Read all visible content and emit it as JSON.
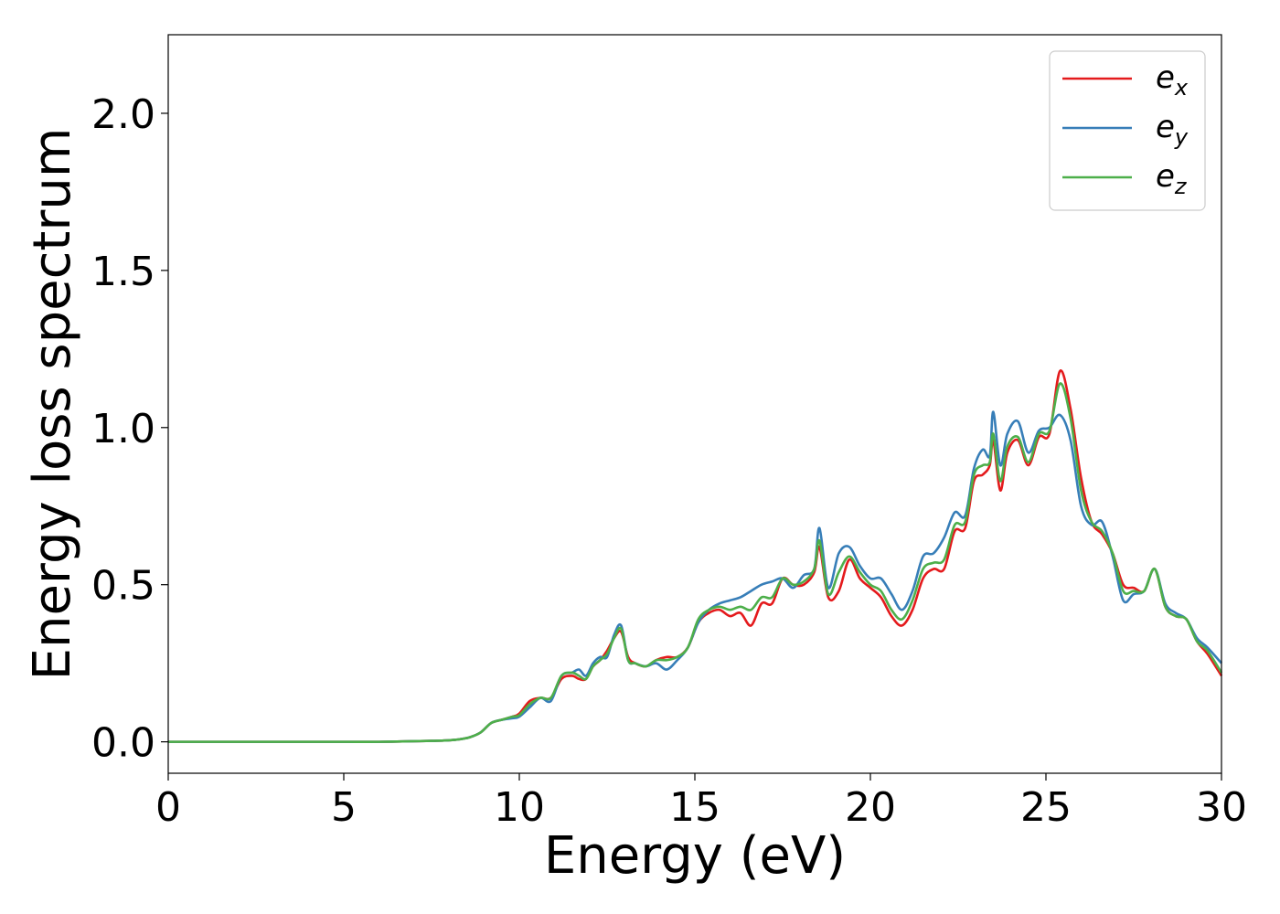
{
  "chart_data": {
    "type": "line",
    "xlabel": "Energy (eV)",
    "ylabel": "Energy loss spectrum",
    "xlim": [
      0,
      30
    ],
    "ylim": [
      -0.1,
      2.25
    ],
    "xticks": [
      0,
      5,
      10,
      15,
      20,
      25,
      30
    ],
    "yticks": [
      0.0,
      0.5,
      1.0,
      1.5,
      2.0
    ],
    "xtick_labels": [
      "0",
      "5",
      "10",
      "15",
      "20",
      "25",
      "30"
    ],
    "ytick_labels": [
      "0.0",
      "0.5",
      "1.0",
      "1.5",
      "2.0"
    ],
    "grid": false,
    "legend_position": "top-right",
    "x": [
      0,
      1,
      2,
      3,
      4,
      5,
      6,
      7,
      7.5,
      8,
      8.3,
      8.6,
      8.9,
      9.2,
      9.5,
      9.8,
      10,
      10.3,
      10.6,
      10.9,
      11.2,
      11.5,
      11.7,
      11.9,
      12.1,
      12.3,
      12.5,
      12.7,
      12.9,
      13.1,
      13.3,
      13.6,
      13.9,
      14.2,
      14.5,
      14.8,
      15.1,
      15.4,
      15.7,
      16,
      16.3,
      16.6,
      16.9,
      17.2,
      17.5,
      17.8,
      18.1,
      18.4,
      18.55,
      18.8,
      19.1,
      19.4,
      19.7,
      20,
      20.3,
      20.6,
      20.9,
      21.2,
      21.5,
      21.8,
      22.1,
      22.4,
      22.7,
      22.95,
      23.2,
      23.4,
      23.5,
      23.7,
      23.9,
      24.2,
      24.5,
      24.8,
      25.1,
      25.4,
      25.7,
      26.0,
      26.3,
      26.6,
      26.9,
      27.2,
      27.5,
      27.8,
      28.1,
      28.4,
      28.7,
      29.0,
      29.3,
      29.6,
      30
    ],
    "series": [
      {
        "name": "x",
        "color": "#e41a1c",
        "values": [
          0,
          0,
          0,
          0,
          0,
          0,
          0,
          0.002,
          0.003,
          0.005,
          0.008,
          0.015,
          0.03,
          0.06,
          0.07,
          0.08,
          0.09,
          0.13,
          0.14,
          0.14,
          0.2,
          0.21,
          0.2,
          0.2,
          0.24,
          0.26,
          0.29,
          0.33,
          0.35,
          0.27,
          0.25,
          0.24,
          0.26,
          0.27,
          0.27,
          0.3,
          0.38,
          0.41,
          0.42,
          0.4,
          0.41,
          0.37,
          0.44,
          0.44,
          0.52,
          0.5,
          0.5,
          0.54,
          0.62,
          0.46,
          0.48,
          0.58,
          0.52,
          0.49,
          0.46,
          0.4,
          0.37,
          0.42,
          0.52,
          0.55,
          0.55,
          0.67,
          0.68,
          0.83,
          0.85,
          0.88,
          0.96,
          0.8,
          0.92,
          0.96,
          0.88,
          0.97,
          0.98,
          1.18,
          1.06,
          0.84,
          0.7,
          0.66,
          0.6,
          0.5,
          0.49,
          0.48,
          0.55,
          0.43,
          0.4,
          0.39,
          0.32,
          0.28,
          0.21
        ]
      },
      {
        "name": "y",
        "color": "#377eb8",
        "values": [
          0,
          0,
          0,
          0,
          0,
          0,
          0,
          0.002,
          0.003,
          0.005,
          0.008,
          0.015,
          0.03,
          0.06,
          0.07,
          0.075,
          0.08,
          0.11,
          0.14,
          0.13,
          0.21,
          0.22,
          0.23,
          0.21,
          0.25,
          0.27,
          0.27,
          0.34,
          0.37,
          0.26,
          0.25,
          0.24,
          0.25,
          0.23,
          0.26,
          0.3,
          0.38,
          0.42,
          0.44,
          0.45,
          0.46,
          0.48,
          0.5,
          0.51,
          0.52,
          0.49,
          0.53,
          0.55,
          0.68,
          0.49,
          0.6,
          0.62,
          0.56,
          0.52,
          0.52,
          0.47,
          0.42,
          0.48,
          0.59,
          0.6,
          0.65,
          0.73,
          0.72,
          0.87,
          0.93,
          0.91,
          1.05,
          0.88,
          0.98,
          1.02,
          0.92,
          0.99,
          1.0,
          1.04,
          0.96,
          0.75,
          0.69,
          0.7,
          0.59,
          0.45,
          0.47,
          0.48,
          0.55,
          0.44,
          0.41,
          0.39,
          0.33,
          0.3,
          0.25
        ]
      },
      {
        "name": "z",
        "color": "#4daf4a",
        "values": [
          0,
          0,
          0,
          0,
          0,
          0,
          0,
          0.002,
          0.003,
          0.005,
          0.008,
          0.015,
          0.03,
          0.06,
          0.07,
          0.08,
          0.085,
          0.12,
          0.14,
          0.14,
          0.21,
          0.22,
          0.21,
          0.2,
          0.24,
          0.26,
          0.28,
          0.33,
          0.36,
          0.26,
          0.25,
          0.24,
          0.26,
          0.26,
          0.27,
          0.3,
          0.39,
          0.42,
          0.43,
          0.42,
          0.43,
          0.42,
          0.46,
          0.46,
          0.52,
          0.5,
          0.51,
          0.55,
          0.64,
          0.47,
          0.54,
          0.59,
          0.54,
          0.5,
          0.48,
          0.42,
          0.39,
          0.45,
          0.55,
          0.57,
          0.58,
          0.69,
          0.7,
          0.85,
          0.88,
          0.89,
          0.98,
          0.83,
          0.94,
          0.97,
          0.89,
          0.98,
          0.99,
          1.14,
          1.03,
          0.8,
          0.7,
          0.67,
          0.6,
          0.48,
          0.48,
          0.48,
          0.55,
          0.43,
          0.4,
          0.39,
          0.32,
          0.29,
          0.22
        ]
      }
    ]
  },
  "legend": {
    "items": [
      {
        "base": "e",
        "sub": "x"
      },
      {
        "base": "e",
        "sub": "y"
      },
      {
        "base": "e",
        "sub": "z"
      }
    ]
  }
}
